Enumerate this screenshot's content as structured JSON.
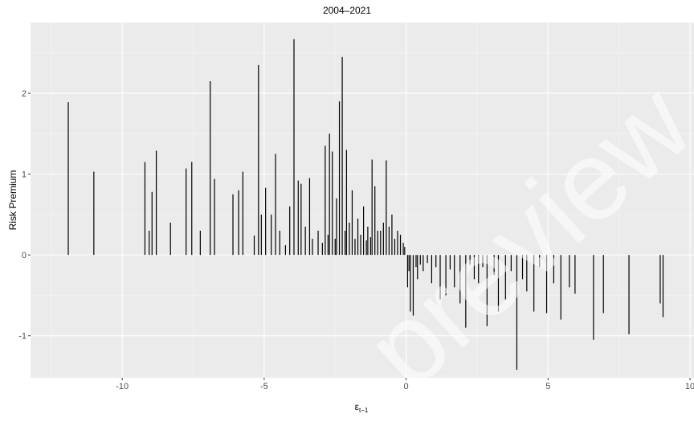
{
  "chart_data": {
    "type": "spike",
    "title": "2004–2021",
    "ylabel": "Risk Premium",
    "xlabel": {
      "base": "ε",
      "sub": "t−1"
    },
    "watermark": "preview",
    "color": "#000000",
    "x": [
      -11.9,
      -11.0,
      -9.2,
      -9.05,
      -8.95,
      -8.8,
      -8.3,
      -7.75,
      -7.55,
      -7.25,
      -6.9,
      -6.75,
      -6.1,
      -5.9,
      -5.75,
      -5.35,
      -5.2,
      -5.1,
      -4.95,
      -4.75,
      -4.6,
      -4.45,
      -4.25,
      -4.1,
      -3.95,
      -3.8,
      -3.7,
      -3.55,
      -3.4,
      -3.3,
      -3.1,
      -2.95,
      -2.85,
      -2.75,
      -2.7,
      -2.6,
      -2.5,
      -2.45,
      -2.35,
      -2.25,
      -2.15,
      -2.1,
      -2.0,
      -1.9,
      -1.8,
      -1.7,
      -1.6,
      -1.5,
      -1.4,
      -1.35,
      -1.25,
      -1.2,
      -1.1,
      -1.0,
      -0.9,
      -0.8,
      -0.7,
      -0.6,
      -0.5,
      -0.4,
      -0.3,
      -0.2,
      -0.1,
      -0.05,
      0.05,
      0.1,
      0.15,
      0.25,
      0.35,
      0.4,
      0.5,
      0.6,
      0.75,
      0.9,
      1.05,
      1.2,
      1.4,
      1.55,
      1.7,
      1.9,
      2.1,
      2.25,
      2.4,
      2.55,
      2.7,
      2.85,
      3.1,
      3.25,
      3.5,
      3.7,
      3.9,
      4.1,
      4.25,
      4.5,
      4.7,
      4.95,
      5.2,
      5.45,
      5.75,
      5.95,
      6.6,
      6.95,
      7.85,
      8.95,
      9.05
    ],
    "values": [
      1.89,
      1.03,
      1.15,
      0.3,
      0.78,
      1.29,
      0.4,
      1.07,
      1.15,
      0.3,
      2.15,
      0.94,
      0.75,
      0.8,
      1.03,
      0.24,
      2.35,
      0.5,
      0.83,
      0.5,
      1.25,
      0.3,
      0.12,
      0.6,
      2.67,
      0.92,
      0.88,
      0.35,
      0.95,
      0.2,
      0.3,
      0.15,
      1.35,
      0.25,
      1.5,
      1.28,
      0.2,
      0.7,
      1.9,
      2.45,
      0.3,
      1.3,
      0.4,
      0.8,
      0.2,
      0.45,
      0.25,
      0.6,
      0.18,
      0.35,
      0.22,
      1.18,
      0.85,
      0.3,
      0.3,
      0.4,
      1.17,
      0.35,
      0.5,
      0.2,
      0.3,
      0.25,
      0.15,
      0.1,
      -0.4,
      -0.2,
      -0.7,
      -0.75,
      -0.15,
      -0.3,
      -0.12,
      -0.2,
      -0.1,
      -0.35,
      -0.15,
      -0.55,
      -0.5,
      -0.18,
      -0.4,
      -0.6,
      -0.9,
      -0.12,
      -0.3,
      -0.35,
      -0.15,
      -0.88,
      -0.25,
      -0.7,
      -0.55,
      -0.2,
      -1.42,
      -0.3,
      -0.45,
      -0.7,
      -0.15,
      -0.72,
      -0.35,
      -0.8,
      -0.4,
      -0.48,
      -1.05,
      -0.72,
      -0.98,
      -0.6,
      -0.77
    ],
    "xlim": [
      -13.23,
      10.14
    ],
    "ylim": [
      -1.52,
      2.876
    ],
    "xticks": [
      -10,
      -5,
      0,
      5,
      10
    ],
    "yticks": [
      -1,
      0,
      1,
      2
    ],
    "xminor": [
      -12.5,
      -7.5,
      -2.5,
      2.5,
      7.5
    ],
    "yminor": [
      -1.5,
      -0.5,
      0.5,
      1.5,
      2.5
    ],
    "grid": true
  }
}
